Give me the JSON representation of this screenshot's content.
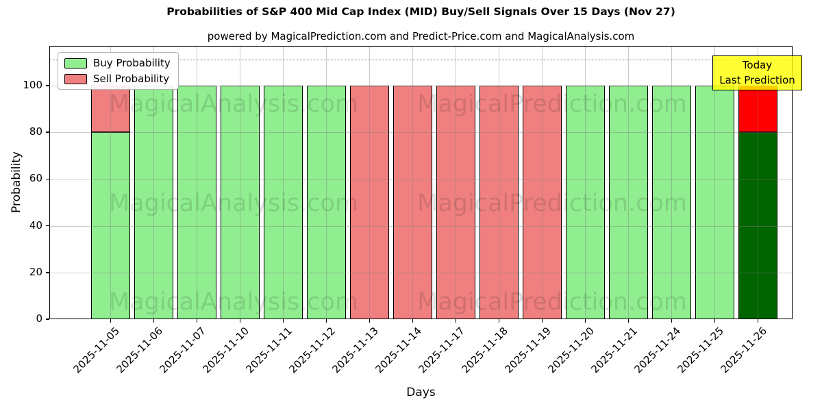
{
  "header": {
    "title": "Probabilities of S&P 400 Mid Cap Index (MID) Buy/Sell Signals Over 15 Days (Nov 27)",
    "subtitle": "powered by MagicalPrediction.com and Predict-Price.com and MagicalAnalysis.com"
  },
  "axes": {
    "xlabel": "Days",
    "ylabel": "Probability",
    "yticks": [
      "0",
      "20",
      "40",
      "60",
      "80",
      "100"
    ]
  },
  "legend": {
    "items": [
      {
        "label": "Buy Probability",
        "color": "#90ee90"
      },
      {
        "label": "Sell Probability",
        "color": "#f08080"
      }
    ]
  },
  "annotation": {
    "lines": [
      "Today",
      "Last Prediction"
    ],
    "bg_color": "#ffff00"
  },
  "watermarks": [
    "MagicalAnalysis.com",
    "MagicalPrediction.com"
  ],
  "colors": {
    "buy": "#90ee90",
    "sell": "#f08080",
    "today_buy": "#006400",
    "today_sell": "#ff0000",
    "annotation_bg": "#ffff00",
    "dashed_line": "#8c8c8c"
  },
  "chart_data": {
    "type": "bar",
    "stacked": true,
    "title": "Probabilities of S&P 400 Mid Cap Index (MID) Buy/Sell Signals Over 15 Days (Nov 27)",
    "xlabel": "Days",
    "ylabel": "Probability",
    "ylim": [
      0,
      117
    ],
    "grid": true,
    "legend_position": "upper left",
    "dashed_threshold_y": 111,
    "categories": [
      "2025-11-05",
      "2025-11-06",
      "2025-11-07",
      "2025-11-10",
      "2025-11-11",
      "2025-11-12",
      "2025-11-13",
      "2025-11-14",
      "2025-11-17",
      "2025-11-18",
      "2025-11-19",
      "2025-11-20",
      "2025-11-21",
      "2025-11-24",
      "2025-11-25",
      "2025-11-26"
    ],
    "series": [
      {
        "name": "Buy Probability",
        "color": "#90ee90",
        "values": [
          80,
          100,
          100,
          100,
          100,
          100,
          0,
          0,
          0,
          0,
          0,
          100,
          100,
          100,
          100,
          80
        ]
      },
      {
        "name": "Sell Probability",
        "color": "#f08080",
        "values": [
          20,
          0,
          0,
          0,
          0,
          0,
          100,
          100,
          100,
          100,
          100,
          0,
          0,
          0,
          0,
          20
        ]
      }
    ],
    "today_index": 15,
    "today_colors": {
      "buy": "#006400",
      "sell": "#ff0000"
    }
  }
}
